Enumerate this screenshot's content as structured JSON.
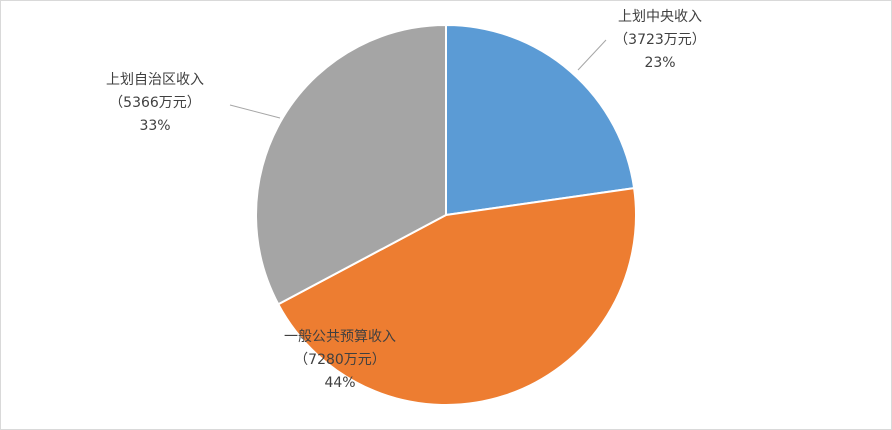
{
  "chart_data": {
    "type": "pie",
    "categories": [
      "上划中央收入",
      "一般公共预算收入",
      "上划自治区收入"
    ],
    "values": [
      3723,
      7280,
      5366
    ],
    "value_labels": [
      "（3723万元）",
      "（7280万元）",
      "（5366万元）"
    ],
    "percents": [
      23,
      44,
      33
    ],
    "percent_labels": [
      "23%",
      "44%",
      "33%"
    ],
    "colors": [
      "#5b9bd5",
      "#ed7d31",
      "#a5a5a5"
    ]
  }
}
